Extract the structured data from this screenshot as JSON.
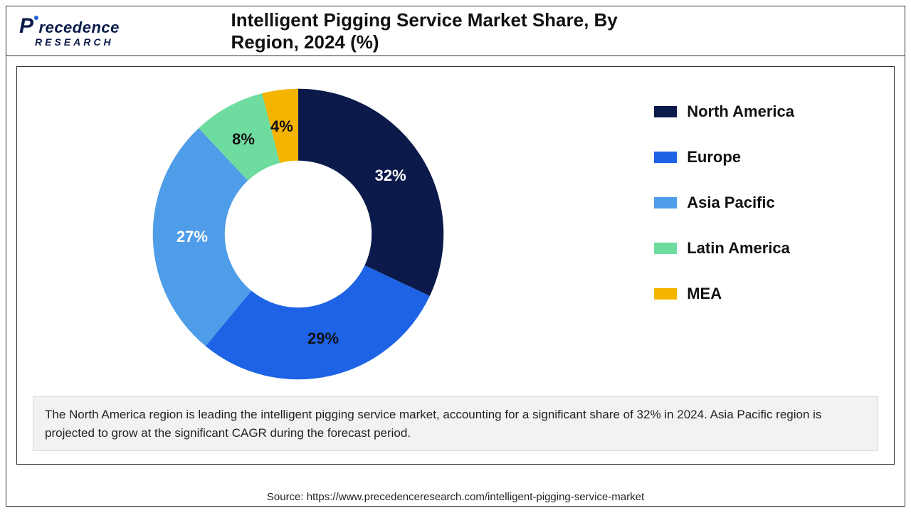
{
  "logo": {
    "top": "recedence",
    "bottom": "RESEARCH"
  },
  "title": "Intelligent Pigging Service Market Share, By Region, 2024 (%)",
  "chart": {
    "type": "donut",
    "inner_ratio": 0.48,
    "background_color": "#ffffff",
    "label_fontsize": 22,
    "slices": [
      {
        "label": "North America",
        "value": 32,
        "color": "#0b1a4a",
        "text": "32%",
        "text_color": "#ffffff"
      },
      {
        "label": "Europe",
        "value": 29,
        "color": "#1e63e6",
        "text": "29%",
        "text_color": "#111111"
      },
      {
        "label": "Asia Pacific",
        "value": 27,
        "color": "#4f9de8",
        "text": "27%",
        "text_color": "#ffffff"
      },
      {
        "label": "Latin America",
        "value": 8,
        "color": "#6edb9f",
        "text": "8%",
        "text_color": "#111111"
      },
      {
        "label": "MEA",
        "value": 4,
        "color": "#f4b400",
        "text": "4%",
        "text_color": "#111111"
      }
    ],
    "start_angle_deg": -90
  },
  "legend": {
    "items": [
      {
        "color": "#0b1a4a",
        "label": "North America"
      },
      {
        "color": "#1e63e6",
        "label": "Europe"
      },
      {
        "color": "#4f9de8",
        "label": "Asia Pacific"
      },
      {
        "color": "#6edb9f",
        "label": "Latin America"
      },
      {
        "color": "#f4b400",
        "label": "MEA"
      }
    ],
    "swatch_w": 32,
    "swatch_h": 16,
    "fontsize": 22
  },
  "caption": "The North America region is leading the intelligent pigging service market, accounting for a significant share of 32% in 2024. Asia Pacific region is projected to grow at the significant CAGR during the forecast period.",
  "source": "Source: https://www.precedenceresearch.com/intelligent-pigging-service-market"
}
